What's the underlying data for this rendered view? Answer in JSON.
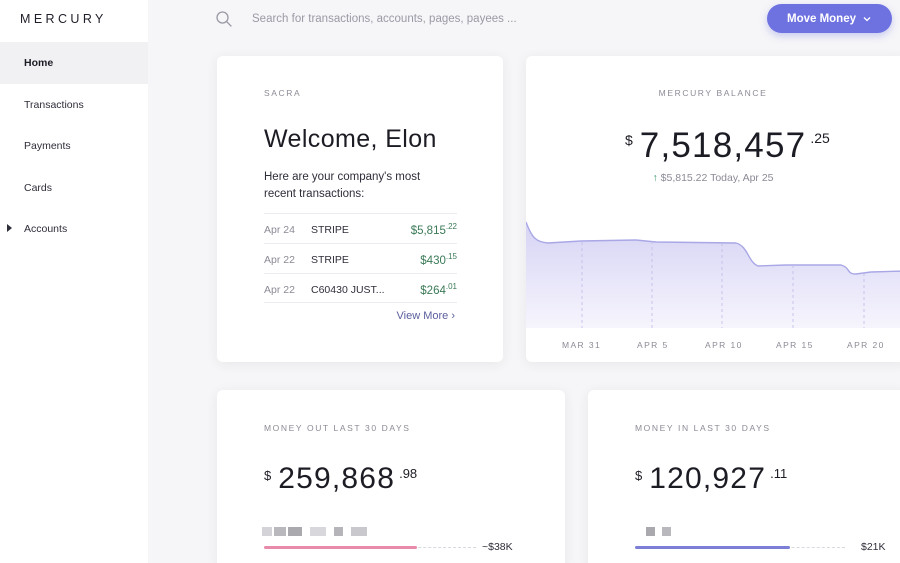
{
  "app": {
    "logo": "MERCURY"
  },
  "sidebar": {
    "items": [
      {
        "label": "Home"
      },
      {
        "label": "Transactions"
      },
      {
        "label": "Payments"
      },
      {
        "label": "Cards"
      },
      {
        "label": "Accounts"
      }
    ]
  },
  "search": {
    "placeholder": "Search for transactions, accounts, pages, payees ..."
  },
  "move_money": {
    "label": "Move Money"
  },
  "welcome": {
    "company": "SACRA",
    "title": "Welcome, Elon",
    "subtitle": "Here are your company's most recent transactions:",
    "transactions": [
      {
        "date": "Apr 24",
        "name": "STRIPE",
        "amount": "$5,815",
        "cents": ".22"
      },
      {
        "date": "Apr 22",
        "name": "STRIPE",
        "amount": "$430",
        "cents": ".15"
      },
      {
        "date": "Apr 22",
        "name": "C60430 JUST...",
        "amount": "$264",
        "cents": ".01"
      }
    ],
    "view_more": "View More ›"
  },
  "balance": {
    "label": "MERCURY BALANCE",
    "currency": "$",
    "amount": "7,518,457",
    "cents": ".25",
    "change_arrow": "↑",
    "change_text": "$5,815.22 Today, Apr 25",
    "axis_labels": [
      "MAR 31",
      "APR 5",
      "APR 10",
      "APR 15",
      "APR 20"
    ]
  },
  "money_out": {
    "label": "MONEY OUT LAST 30 DAYS",
    "currency": "$",
    "amount": "259,868",
    "cents": ".98",
    "bar_label": "~$38K",
    "bar_fraction": 0.72,
    "bar_color": "#e88aa9"
  },
  "money_in": {
    "label": "MONEY IN LAST 30 DAYS",
    "currency": "$",
    "amount": "120,927",
    "cents": ".11",
    "bar_label": "$21K",
    "bar_fraction": 0.74,
    "bar_color": "#7d7fd6"
  },
  "colors": {
    "accent": "#6e72e0",
    "positive": "#3b7a57",
    "chart_fill": "#dcdaf5",
    "chart_line": "#a9a7e6"
  }
}
